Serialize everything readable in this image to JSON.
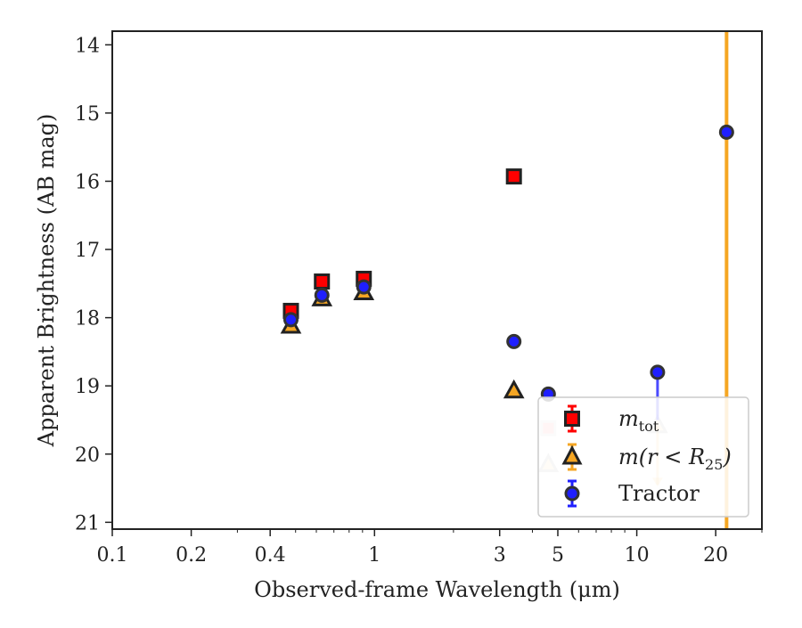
{
  "chart_data": {
    "type": "scatter",
    "title": "",
    "xlabel": "Observed-frame Wavelength (μm)",
    "ylabel": "Apparent Brightness (AB mag)",
    "xscale": "log",
    "xlim": [
      0.1,
      30
    ],
    "ylim": [
      21.1,
      13.8
    ],
    "y_inverted": true,
    "x_ticks": [
      {
        "value": 0.1,
        "label": "0.1"
      },
      {
        "value": 0.2,
        "label": "0.2"
      },
      {
        "value": 0.4,
        "label": "0.4"
      },
      {
        "value": 1,
        "label": "1"
      },
      {
        "value": 3,
        "label": "3"
      },
      {
        "value": 5,
        "label": "5"
      },
      {
        "value": 10,
        "label": "10"
      },
      {
        "value": 20,
        "label": "20"
      }
    ],
    "y_ticks": [
      {
        "value": 14,
        "label": "14"
      },
      {
        "value": 15,
        "label": "15"
      },
      {
        "value": 16,
        "label": "16"
      },
      {
        "value": 17,
        "label": "17"
      },
      {
        "value": 18,
        "label": "18"
      },
      {
        "value": 19,
        "label": "19"
      },
      {
        "value": 20,
        "label": "20"
      },
      {
        "value": 21,
        "label": "21"
      }
    ],
    "grid": false,
    "legend_position": "lower-right",
    "vertical_line": {
      "x": 22,
      "color": "#f5a623"
    },
    "series": [
      {
        "name": "m_tot",
        "label_html": "m<tspan baseline-shift=\"sub\" font-size=\"16\">tot</tspan>",
        "marker": "square",
        "color": "#ff0000",
        "edge": "#222222",
        "points": [
          {
            "x": 0.48,
            "y": 17.9
          },
          {
            "x": 0.63,
            "y": 17.47
          },
          {
            "x": 0.91,
            "y": 17.43
          },
          {
            "x": 3.4,
            "y": 15.93
          }
        ]
      },
      {
        "name": "m(r < R25)",
        "marker": "triangle",
        "color": "#f5a623",
        "edge": "#222222",
        "points": [
          {
            "x": 0.48,
            "y": 18.12
          },
          {
            "x": 0.63,
            "y": 17.72
          },
          {
            "x": 0.91,
            "y": 17.63
          },
          {
            "x": 3.4,
            "y": 19.07
          },
          {
            "x": 4.6,
            "y": 20.15,
            "faded": true
          },
          {
            "x": 12.0,
            "y": 19.58,
            "faded": true,
            "upper_limit": true,
            "limit_to": 20.45
          }
        ]
      },
      {
        "name": "Tractor",
        "marker": "circle",
        "color": "#1f1fff",
        "edge": "#333333",
        "points": [
          {
            "x": 0.48,
            "y": 18.03
          },
          {
            "x": 0.63,
            "y": 17.67
          },
          {
            "x": 0.91,
            "y": 17.55
          },
          {
            "x": 3.4,
            "y": 18.35
          },
          {
            "x": 4.6,
            "y": 19.12
          },
          {
            "x": 12.0,
            "y": 18.8,
            "err_high": 19.5
          },
          {
            "x": 22.0,
            "y": 15.28
          }
        ]
      }
    ],
    "extra_marks": [
      {
        "kind": "square",
        "x": 4.6,
        "y": 19.62,
        "faded": true,
        "color": "#ff0000"
      }
    ]
  }
}
